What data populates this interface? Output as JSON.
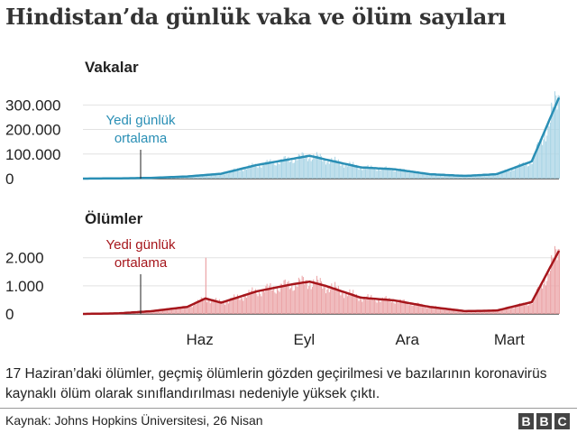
{
  "title": "Hindistan’da günlük vaka ve ölüm sayıları",
  "note": "17 Haziran’daki ölümler, geçmiş ölümlerin gözden geçirilmesi ve bazılarının koronavirüs kaynaklı ölüm olarak sınıflandırılması nedeniyle yüksek çıktı.",
  "source": "Kaynak: Johns Hopkins Üniversitesi, 26 Nisan",
  "logo": [
    "B",
    "B",
    "C"
  ],
  "colors": {
    "cases": "#2a8fb5",
    "cases_bar": "#a9d4e5",
    "deaths": "#a6161c",
    "deaths_bar": "#eba4a7",
    "grid": "#e2e2e2",
    "axis": "#222222"
  },
  "chart_data": [
    {
      "type": "line",
      "title": "Vakalar",
      "annotation": [
        "Yedi günlük",
        "ortalama"
      ],
      "y_ticks": [
        "300.000",
        "200.000",
        "100.000",
        "0"
      ],
      "y_tick_values": [
        300000,
        200000,
        100000,
        0
      ],
      "ylim": [
        0,
        360000
      ],
      "x": [
        "2020-03-01",
        "2020-04-01",
        "2020-05-01",
        "2020-06-01",
        "2020-07-01",
        "2020-08-01",
        "2020-09-01",
        "2020-09-17",
        "2020-10-01",
        "2020-11-01",
        "2020-12-01",
        "2021-01-01",
        "2021-02-01",
        "2021-03-01",
        "2021-04-01",
        "2021-04-25"
      ],
      "series": [
        {
          "values": [
            0,
            1000,
            3000,
            9000,
            20000,
            55000,
            80000,
            93000,
            78000,
            46000,
            38000,
            18000,
            11000,
            18000,
            70000,
            330000
          ]
        }
      ]
    },
    {
      "type": "line",
      "title": "Ölümler",
      "annotation": [
        "Yedi günlük",
        "ortalama"
      ],
      "y_ticks": [
        "2.000",
        "1.000",
        "0"
      ],
      "y_tick_values": [
        2000,
        1000,
        0
      ],
      "ylim": [
        0,
        2600
      ],
      "x_ticks": [
        "Haz",
        "Eyl",
        "Ara",
        "Mart"
      ],
      "x": [
        "2020-03-01",
        "2020-04-01",
        "2020-05-01",
        "2020-06-01",
        "2020-06-17",
        "2020-07-01",
        "2020-08-01",
        "2020-09-01",
        "2020-09-17",
        "2020-10-01",
        "2020-11-01",
        "2020-12-01",
        "2021-01-01",
        "2021-02-01",
        "2021-03-01",
        "2021-04-01",
        "2021-04-25"
      ],
      "series": [
        {
          "values": [
            0,
            20,
            100,
            250,
            550,
            400,
            800,
            1050,
            1150,
            1000,
            580,
            480,
            250,
            100,
            120,
            420,
            2250
          ]
        }
      ],
      "spike": {
        "x": "2020-06-17",
        "value": 2000
      }
    }
  ]
}
